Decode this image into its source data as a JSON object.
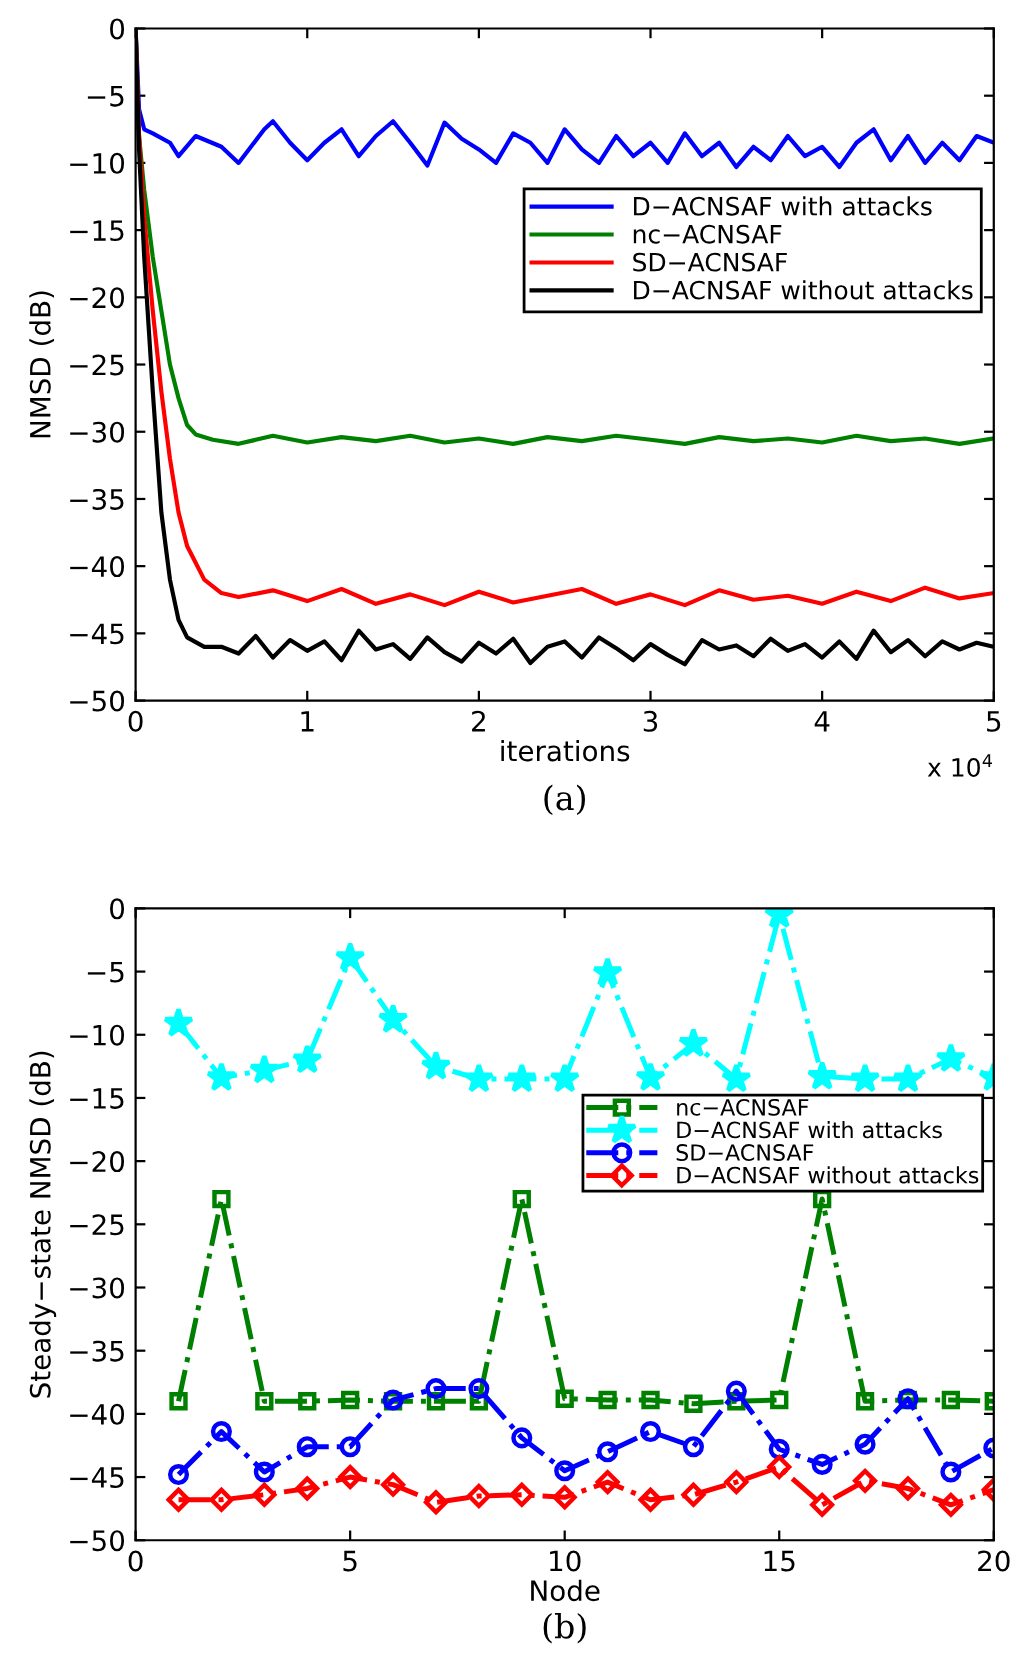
{
  "chart_data": [
    {
      "type": "line",
      "xlabel": "iterations",
      "ylabel": "NMSD (dB)",
      "xlim": [
        0,
        5
      ],
      "xticks": [
        0,
        1,
        2,
        3,
        4,
        5
      ],
      "ylim": [
        -50,
        0
      ],
      "yticks": [
        -50,
        -45,
        -40,
        -35,
        -30,
        -25,
        -20,
        -15,
        -10,
        -5,
        0
      ],
      "grid": false,
      "legend": "top right",
      "line_style": "solid",
      "marker": "none",
      "annotations": [
        "x 10$^{4}$",
        "(a)"
      ],
      "series": [
        {
          "name": "D−ACNSAF with attacks",
          "color": "#0000ff",
          "x": [
            0,
            0.02,
            0.05,
            0.1,
            0.2,
            0.25,
            0.35,
            0.5,
            0.6,
            0.75,
            0.8,
            0.9,
            1.0,
            1.1,
            1.2,
            1.3,
            1.4,
            1.5,
            1.6,
            1.7,
            1.8,
            1.9,
            2.0,
            2.1,
            2.2,
            2.3,
            2.4,
            2.5,
            2.6,
            2.7,
            2.8,
            2.9,
            3.0,
            3.1,
            3.2,
            3.3,
            3.4,
            3.5,
            3.6,
            3.7,
            3.8,
            3.9,
            4.0,
            4.1,
            4.2,
            4.3,
            4.4,
            4.5,
            4.6,
            4.7,
            4.8,
            4.9,
            5.0
          ],
          "values": [
            0,
            -6,
            -7.5,
            -7.8,
            -8.5,
            -9.5,
            -8,
            -8.8,
            -10,
            -7.5,
            -6.9,
            -8.5,
            -9.8,
            -8.5,
            -7.5,
            -9.5,
            -8,
            -6.9,
            -8.5,
            -10.2,
            -7,
            -8.2,
            -9,
            -10,
            -7.8,
            -8.5,
            -10,
            -7.5,
            -9,
            -10,
            -8,
            -9.5,
            -8.5,
            -10,
            -7.8,
            -9.5,
            -8.5,
            -10.3,
            -8.8,
            -9.8,
            -8,
            -9.5,
            -8.8,
            -10.3,
            -8.5,
            -7.5,
            -9.8,
            -8,
            -10,
            -8.5,
            -9.8,
            -8,
            -8.5
          ]
        },
        {
          "name": "nc−ACNSAF",
          "color": "#008000",
          "x": [
            0,
            0.02,
            0.05,
            0.1,
            0.15,
            0.2,
            0.25,
            0.3,
            0.35,
            0.45,
            0.6,
            0.8,
            1.0,
            1.2,
            1.4,
            1.6,
            1.8,
            2.0,
            2.2,
            2.4,
            2.6,
            2.8,
            3.0,
            3.2,
            3.4,
            3.6,
            3.8,
            4.0,
            4.2,
            4.4,
            4.6,
            4.8,
            5.0
          ],
          "values": [
            0,
            -8,
            -12,
            -17,
            -21,
            -25,
            -27.5,
            -29.5,
            -30.2,
            -30.6,
            -30.9,
            -30.3,
            -30.8,
            -30.4,
            -30.7,
            -30.3,
            -30.8,
            -30.5,
            -30.9,
            -30.4,
            -30.7,
            -30.3,
            -30.6,
            -30.9,
            -30.4,
            -30.7,
            -30.5,
            -30.8,
            -30.3,
            -30.7,
            -30.5,
            -30.9,
            -30.5
          ]
        },
        {
          "name": "SD−ACNSAF",
          "color": "#ff0000",
          "x": [
            0,
            0.02,
            0.05,
            0.1,
            0.15,
            0.2,
            0.25,
            0.3,
            0.4,
            0.5,
            0.6,
            0.8,
            1.0,
            1.2,
            1.4,
            1.6,
            1.8,
            2.0,
            2.2,
            2.4,
            2.6,
            2.8,
            3.0,
            3.2,
            3.4,
            3.6,
            3.8,
            4.0,
            4.2,
            4.4,
            4.6,
            4.8,
            5.0
          ],
          "values": [
            0,
            -8,
            -14,
            -21,
            -27,
            -32,
            -36,
            -38.5,
            -41,
            -42,
            -42.3,
            -41.8,
            -42.6,
            -41.7,
            -42.8,
            -42.1,
            -42.9,
            -41.9,
            -42.7,
            -42.2,
            -41.7,
            -42.8,
            -42.1,
            -42.9,
            -41.8,
            -42.5,
            -42.2,
            -42.8,
            -41.9,
            -42.6,
            -41.6,
            -42.4,
            -42.0
          ]
        },
        {
          "name": "D−ACNSAF without attacks",
          "color": "#000000",
          "x": [
            0,
            0.02,
            0.05,
            0.1,
            0.15,
            0.2,
            0.25,
            0.3,
            0.4,
            0.5,
            0.6,
            0.7,
            0.8,
            0.9,
            1.0,
            1.1,
            1.2,
            1.3,
            1.4,
            1.5,
            1.6,
            1.7,
            1.8,
            1.9,
            2.0,
            2.1,
            2.2,
            2.3,
            2.4,
            2.5,
            2.6,
            2.7,
            2.8,
            2.9,
            3.0,
            3.1,
            3.2,
            3.3,
            3.4,
            3.5,
            3.6,
            3.7,
            3.8,
            3.9,
            4.0,
            4.1,
            4.2,
            4.3,
            4.4,
            4.5,
            4.6,
            4.7,
            4.8,
            4.9,
            5.0
          ],
          "values": [
            0,
            -9,
            -17,
            -27,
            -36,
            -41,
            -44,
            -45.3,
            -46,
            -46,
            -46.5,
            -45.2,
            -46.8,
            -45.5,
            -46.3,
            -45.6,
            -47,
            -44.8,
            -46.2,
            -45.8,
            -46.9,
            -45.3,
            -46.4,
            -47.1,
            -45.7,
            -46.5,
            -45.4,
            -47.2,
            -46,
            -45.6,
            -46.8,
            -45.3,
            -46.1,
            -47,
            -45.8,
            -46.6,
            -47.3,
            -45.5,
            -46.2,
            -45.9,
            -46.7,
            -45.4,
            -46.3,
            -45.8,
            -46.8,
            -45.6,
            -46.9,
            -44.8,
            -46.4,
            -45.5,
            -46.7,
            -45.6,
            -46.2,
            -45.7,
            -46.0
          ]
        }
      ]
    },
    {
      "type": "line",
      "xlabel": "Node",
      "ylabel": "Steady−state NMSD (dB)",
      "xlim": [
        0,
        20
      ],
      "xticks": [
        0,
        5,
        10,
        15,
        20
      ],
      "ylim": [
        -50,
        0
      ],
      "yticks": [
        -50,
        -45,
        -40,
        -35,
        -30,
        -25,
        -20,
        -15,
        -10,
        -5,
        0
      ],
      "grid": false,
      "legend": "right",
      "line_style": "dashdot",
      "annotations": [
        "(b)"
      ],
      "x": [
        1,
        2,
        3,
        4,
        5,
        6,
        7,
        8,
        9,
        10,
        11,
        12,
        13,
        14,
        15,
        16,
        17,
        18,
        19,
        20
      ],
      "series": [
        {
          "name": "nc−ACNSAF",
          "color": "#008000",
          "marker": "square",
          "values": [
            -39,
            -23,
            -39,
            -39,
            -38.9,
            -39,
            -39,
            -39,
            -23,
            -38.8,
            -38.9,
            -38.9,
            -39.2,
            -39,
            -38.9,
            -23,
            -39,
            -38.9,
            -38.9,
            -39
          ]
        },
        {
          "name": "D−ACNSAF with attacks",
          "color": "#00ffff",
          "marker": "star",
          "values": [
            -9.1,
            -13.4,
            -12.8,
            -12,
            -3.9,
            -8.8,
            -12.5,
            -13.5,
            -13.5,
            -13.5,
            -5.1,
            -13.4,
            -10.7,
            -13.5,
            -0.5,
            -13.3,
            -13.5,
            -13.5,
            -11.9,
            -13.4
          ]
        },
        {
          "name": "SD−ACNSAF",
          "color": "#0000ff",
          "marker": "circle",
          "values": [
            -44.8,
            -41.4,
            -44.6,
            -42.6,
            -42.6,
            -38.9,
            -38,
            -38,
            -41.9,
            -44.5,
            -43,
            -41.4,
            -42.6,
            -38.2,
            -42.8,
            -44,
            -42.4,
            -38.8,
            -44.6,
            -42.7
          ]
        },
        {
          "name": "D−ACNSAF without attacks",
          "color": "#ff0000",
          "marker": "diamond",
          "values": [
            -46.8,
            -46.8,
            -46.4,
            -45.9,
            -45,
            -45.6,
            -47,
            -46.5,
            -46.4,
            -46.6,
            -45.4,
            -46.8,
            -46.4,
            -45.4,
            -44.2,
            -47.2,
            -45.3,
            -45.9,
            -47.2,
            -46
          ]
        }
      ]
    }
  ]
}
